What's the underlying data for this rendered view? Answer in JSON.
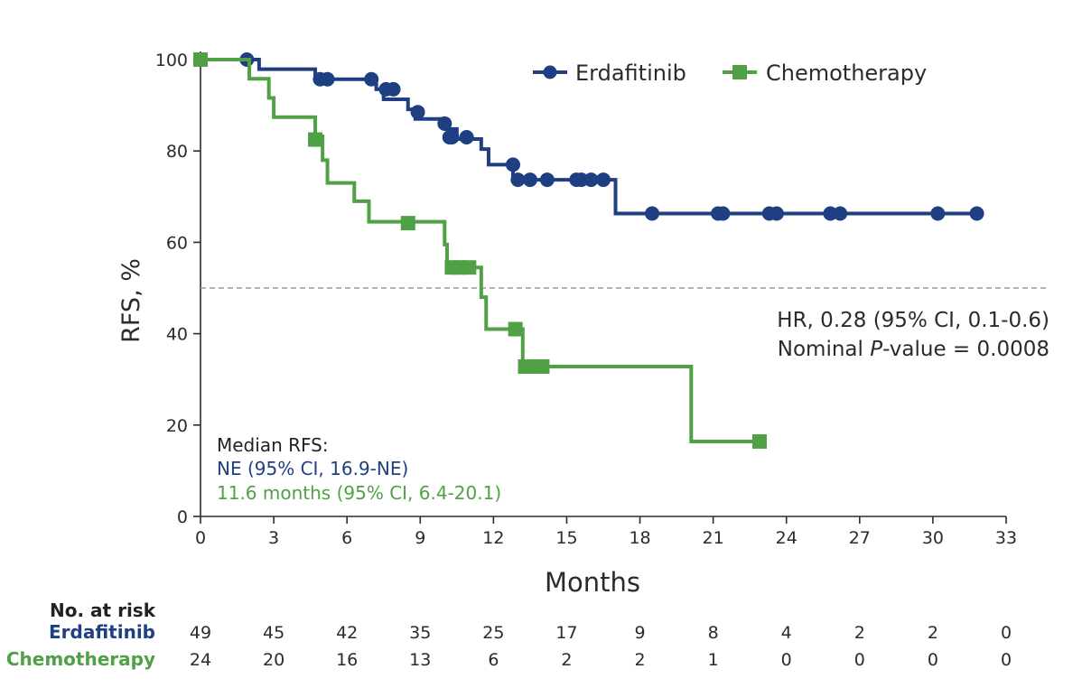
{
  "chart_data": {
    "type": "line",
    "title": "",
    "xlabel": "Months",
    "ylabel": "RFS, %",
    "xlim": [
      0,
      33
    ],
    "ylim": [
      0,
      100
    ],
    "xticks": [
      0,
      3,
      6,
      9,
      12,
      15,
      18,
      21,
      24,
      27,
      30,
      33
    ],
    "yticks": [
      0,
      20,
      40,
      60,
      80,
      100
    ],
    "grid": false,
    "reference_line_y": 50,
    "legend_position": "top-right",
    "series": [
      {
        "name": "Erdafitinib",
        "color": "#1f3f83",
        "marker": "circle",
        "step_x": [
          0,
          2.4,
          4.7,
          7.2,
          7.5,
          8.5,
          8.8,
          10.0,
          10.5,
          11.5,
          11.8,
          12.8,
          13.1,
          15.5,
          17.0,
          32.0
        ],
        "step_y": [
          100,
          97.9,
          95.7,
          93.5,
          91.3,
          89.1,
          87.0,
          84.8,
          82.6,
          80.4,
          77.0,
          73.7,
          73.7,
          73.7,
          66.3,
          66.3
        ],
        "censor_x": [
          0.0,
          1.9,
          4.9,
          5.2,
          7.0,
          7.6,
          7.9,
          8.9,
          10.0,
          10.2,
          10.3,
          10.9,
          12.8,
          13.0,
          13.5,
          14.2,
          15.4,
          15.6,
          16.0,
          16.5,
          18.5,
          21.2,
          21.4,
          23.3,
          23.6,
          25.8,
          26.2,
          30.2,
          31.8
        ],
        "censor_y": [
          100,
          100,
          95.7,
          95.7,
          95.7,
          93.5,
          93.5,
          88.5,
          86.0,
          83.0,
          83.0,
          83.0,
          77.0,
          73.7,
          73.7,
          73.7,
          73.7,
          73.7,
          73.7,
          73.7,
          66.3,
          66.3,
          66.3,
          66.3,
          66.3,
          66.3,
          66.3,
          66.3,
          66.3
        ]
      },
      {
        "name": "Chemotherapy",
        "color": "#50a046",
        "marker": "square",
        "step_x": [
          0,
          2.0,
          2.8,
          3.0,
          4.7,
          5.0,
          5.2,
          6.3,
          6.9,
          10.0,
          10.1,
          11.5,
          11.7,
          13.2,
          20.1,
          23.0
        ],
        "step_y": [
          100,
          95.8,
          91.6,
          87.4,
          83.2,
          78.0,
          73.0,
          69.0,
          64.5,
          59.5,
          54.5,
          48.0,
          41.0,
          32.8,
          16.4,
          16.4
        ],
        "censor_x": [
          0.0,
          4.7,
          8.5,
          10.3,
          10.6,
          11.0,
          12.9,
          13.3,
          13.7,
          14.0,
          22.9
        ],
        "censor_y": [
          100,
          82.5,
          64.2,
          54.5,
          54.5,
          54.5,
          41.0,
          32.8,
          32.8,
          32.8,
          16.4
        ]
      }
    ],
    "annotations": {
      "hr_line1": "HR, 0.28 (95% CI, 0.1-0.6)",
      "hr_line2_prefix": "Nominal ",
      "hr_line2_italic": "P",
      "hr_line2_suffix": "-value = 0.0008",
      "median_title": "Median RFS:",
      "median_erdafitinib": "NE (95% CI, 16.9-NE)",
      "median_chemotherapy": "11.6 months (95% CI, 6.4-20.1)"
    },
    "risk_table": {
      "title": "No. at risk",
      "rows": [
        {
          "label": "Erdafitinib",
          "color": "#1f3f83",
          "values": [
            49,
            45,
            42,
            35,
            25,
            17,
            9,
            8,
            4,
            2,
            2,
            0
          ]
        },
        {
          "label": "Chemotherapy",
          "color": "#50a046",
          "values": [
            24,
            20,
            16,
            13,
            6,
            2,
            2,
            1,
            0,
            0,
            0,
            0
          ]
        }
      ]
    }
  }
}
